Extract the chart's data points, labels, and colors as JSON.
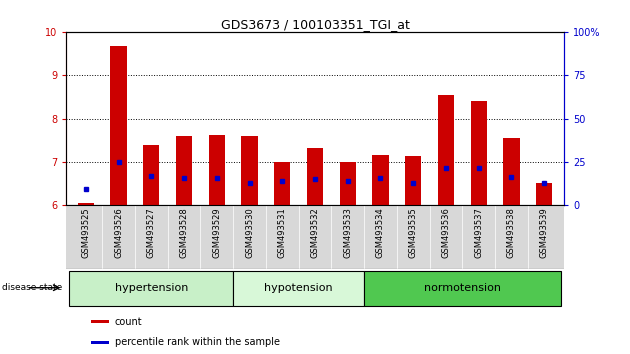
{
  "title": "GDS3673 / 100103351_TGI_at",
  "samples": [
    "GSM493525",
    "GSM493526",
    "GSM493527",
    "GSM493528",
    "GSM493529",
    "GSM493530",
    "GSM493531",
    "GSM493532",
    "GSM493533",
    "GSM493534",
    "GSM493535",
    "GSM493536",
    "GSM493537",
    "GSM493538",
    "GSM493539"
  ],
  "red_values": [
    6.05,
    9.68,
    7.38,
    7.6,
    7.63,
    7.6,
    7.0,
    7.33,
    7.0,
    7.15,
    7.14,
    8.55,
    8.4,
    7.55,
    6.52
  ],
  "blue_values": [
    6.38,
    7.0,
    6.68,
    6.62,
    6.62,
    6.52,
    6.55,
    6.6,
    6.55,
    6.62,
    6.52,
    6.85,
    6.85,
    6.65,
    6.52
  ],
  "ylim_left": [
    6,
    10
  ],
  "ylim_right": [
    0,
    100
  ],
  "yticks_left": [
    6,
    7,
    8,
    9,
    10
  ],
  "yticks_right": [
    0,
    25,
    50,
    75,
    100
  ],
  "group_defs": [
    {
      "label": "hypertension",
      "start": 0,
      "end": 4
    },
    {
      "label": "hypotension",
      "start": 5,
      "end": 8
    },
    {
      "label": "normotension",
      "start": 9,
      "end": 14
    }
  ],
  "group_colors": [
    "#c8f0c8",
    "#d8f8d8",
    "#50c850"
  ],
  "bar_width": 0.5,
  "red_color": "#cc0000",
  "blue_color": "#0000cc",
  "left_axis_color": "#cc0000",
  "right_axis_color": "#0000cc",
  "tick_label_fontsize": 7,
  "sample_label_fontsize": 6,
  "group_label_fontsize": 8
}
